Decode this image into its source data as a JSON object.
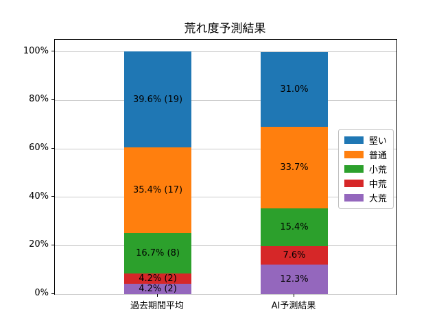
{
  "title": "荒れ度予測結果",
  "chart_data": {
    "type": "bar",
    "stacked": true,
    "title": "荒れ度予測結果",
    "categories": [
      "過去期間平均",
      "AI予測結果"
    ],
    "series": [
      {
        "name": "堅い",
        "color": "#1f77b4",
        "values": [
          39.6,
          31.0
        ],
        "bar_labels": [
          "39.6% (19)",
          "31.0%"
        ]
      },
      {
        "name": "普通",
        "color": "#ff7f0e",
        "values": [
          35.4,
          33.7
        ],
        "bar_labels": [
          "35.4% (17)",
          "33.7%"
        ]
      },
      {
        "name": "小荒",
        "color": "#2ca02c",
        "values": [
          16.7,
          15.4
        ],
        "bar_labels": [
          "16.7% (8)",
          "15.4%"
        ]
      },
      {
        "name": "中荒",
        "color": "#d62728",
        "values": [
          4.2,
          7.6
        ],
        "bar_labels": [
          "4.2% (2)",
          "7.6%"
        ]
      },
      {
        "name": "大荒",
        "color": "#9467bd",
        "values": [
          4.2,
          12.3
        ],
        "bar_labels": [
          "4.2% (2)",
          "12.3%"
        ]
      }
    ],
    "stack_bottom_to_top": [
      "大荒",
      "中荒",
      "小荒",
      "普通",
      "堅い"
    ],
    "y_ticks": [
      {
        "value": 0,
        "label": "0%"
      },
      {
        "value": 20,
        "label": "20%"
      },
      {
        "value": 40,
        "label": "40%"
      },
      {
        "value": 60,
        "label": "60%"
      },
      {
        "value": 80,
        "label": "80%"
      },
      {
        "value": 100,
        "label": "100%"
      }
    ],
    "ylim": [
      0,
      105
    ],
    "grid": true,
    "legend_position": "center right"
  }
}
